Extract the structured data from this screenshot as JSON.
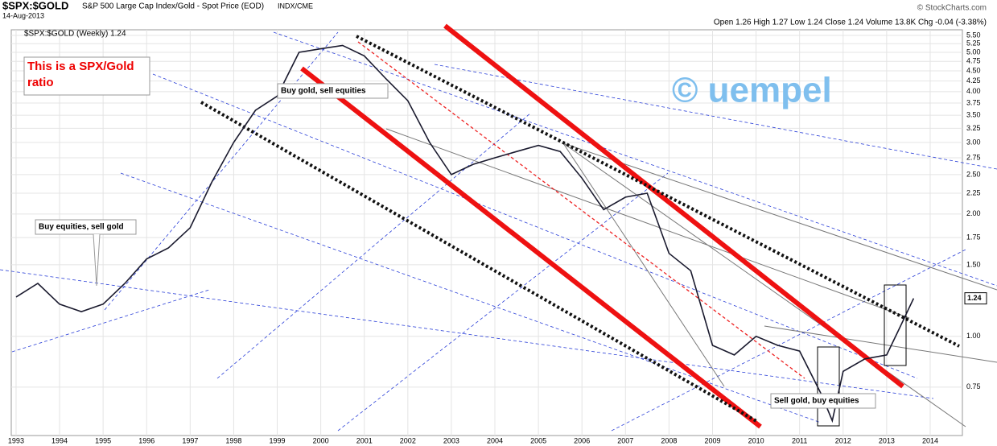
{
  "chart_data": {
    "type": "line",
    "title": "$SPX:$GOLD",
    "subtitle": "S&P 500 Large Cap Index/Gold - Spot Price (EOD)",
    "exchange": "INDX/CME",
    "date": "14-Aug-2013",
    "source": "© StockCharts.com",
    "quote": "Open 1.26  High 1.27  Low 1.24  Close 1.24  Volume 13.8K  Chg -0.04 (-3.38%)",
    "legend_label": "$SPX:$GOLD (Weekly) 1.24",
    "annotations": [
      "This is a SPX/Gold ratio",
      "Buy gold, sell equities",
      "Buy equities, sell gold",
      "Sell gold, buy equities",
      "© uempel"
    ],
    "log_scale": true,
    "grid": true,
    "x": [
      1993.0,
      1993.5,
      1994.0,
      1994.5,
      1995.0,
      1995.5,
      1996.0,
      1996.5,
      1997.0,
      1997.5,
      1998.0,
      1998.5,
      1999.0,
      1999.5,
      2000.0,
      2000.5,
      2001.0,
      2001.5,
      2002.0,
      2002.5,
      2003.0,
      2003.5,
      2004.0,
      2004.5,
      2005.0,
      2005.5,
      2006.0,
      2006.5,
      2007.0,
      2007.5,
      2008.0,
      2008.5,
      2009.0,
      2009.5,
      2010.0,
      2010.5,
      2011.0,
      2011.5,
      2011.75,
      2012.0,
      2012.5,
      2013.0,
      2013.3,
      2013.62
    ],
    "series": [
      {
        "name": "$SPX:$GOLD",
        "color": "#1a1a2e",
        "values": [
          1.25,
          1.35,
          1.2,
          1.15,
          1.2,
          1.35,
          1.55,
          1.65,
          1.85,
          2.4,
          3.0,
          3.6,
          3.9,
          5.0,
          5.1,
          5.2,
          4.9,
          4.3,
          3.8,
          3.0,
          2.5,
          2.65,
          2.75,
          2.85,
          2.95,
          2.85,
          2.45,
          2.05,
          2.2,
          2.25,
          1.6,
          1.45,
          0.95,
          0.9,
          1.0,
          0.95,
          0.92,
          0.72,
          0.62,
          0.82,
          0.88,
          0.9,
          1.05,
          1.24
        ]
      }
    ],
    "xlim": [
      1992.89,
      2014.74
    ],
    "xticks": [
      1993,
      1994,
      1995,
      1996,
      1997,
      1998,
      1999,
      2000,
      2001,
      2002,
      2003,
      2004,
      2005,
      2006,
      2007,
      2008,
      2009,
      2010,
      2011,
      2012,
      2013,
      2014
    ],
    "ylim": [
      0.57,
      5.68
    ],
    "yticks": [
      0.75,
      {
        "value": 1,
        "label": "1.00"
      },
      {
        "value": 1.5,
        "label": "1.50"
      },
      1.75,
      {
        "value": 2,
        "label": "2.00"
      },
      2.25,
      {
        "value": 2.5,
        "label": "2.50"
      },
      2.75,
      {
        "value": 3,
        "label": "3.00"
      },
      3.25,
      {
        "value": 3.5,
        "label": "3.50"
      },
      3.75,
      {
        "value": 4,
        "label": "4.00"
      },
      4.25,
      {
        "value": 4.5,
        "label": "4.50"
      },
      4.75,
      {
        "value": 5,
        "label": "5.00"
      },
      5.25,
      {
        "value": 5.5,
        "label": "5.50"
      }
    ]
  }
}
